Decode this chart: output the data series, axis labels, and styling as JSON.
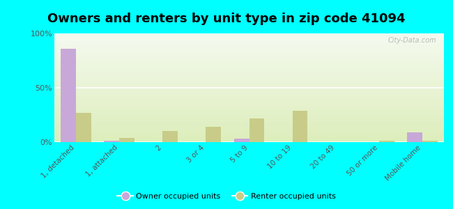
{
  "title": "Owners and renters by unit type in zip code 41094",
  "categories": [
    "1, detached",
    "1, attached",
    "2",
    "3 or 4",
    "5 to 9",
    "10 to 19",
    "20 to 49",
    "50 or more",
    "Mobile home"
  ],
  "owner_values": [
    86,
    1,
    0,
    0,
    3,
    0,
    0,
    0,
    9
  ],
  "renter_values": [
    27,
    4,
    10,
    14,
    22,
    29,
    0,
    1,
    1
  ],
  "owner_color": "#c8a8d8",
  "renter_color": "#c8cc88",
  "background_color": "#00ffff",
  "ylabel_ticks": [
    "0%",
    "50%",
    "100%"
  ],
  "ytick_vals": [
    0,
    50,
    100
  ],
  "ylim": [
    0,
    100
  ],
  "bar_width": 0.35,
  "title_fontsize": 13,
  "legend_owner": "Owner occupied units",
  "legend_renter": "Renter occupied units",
  "watermark": "City-Data.com"
}
